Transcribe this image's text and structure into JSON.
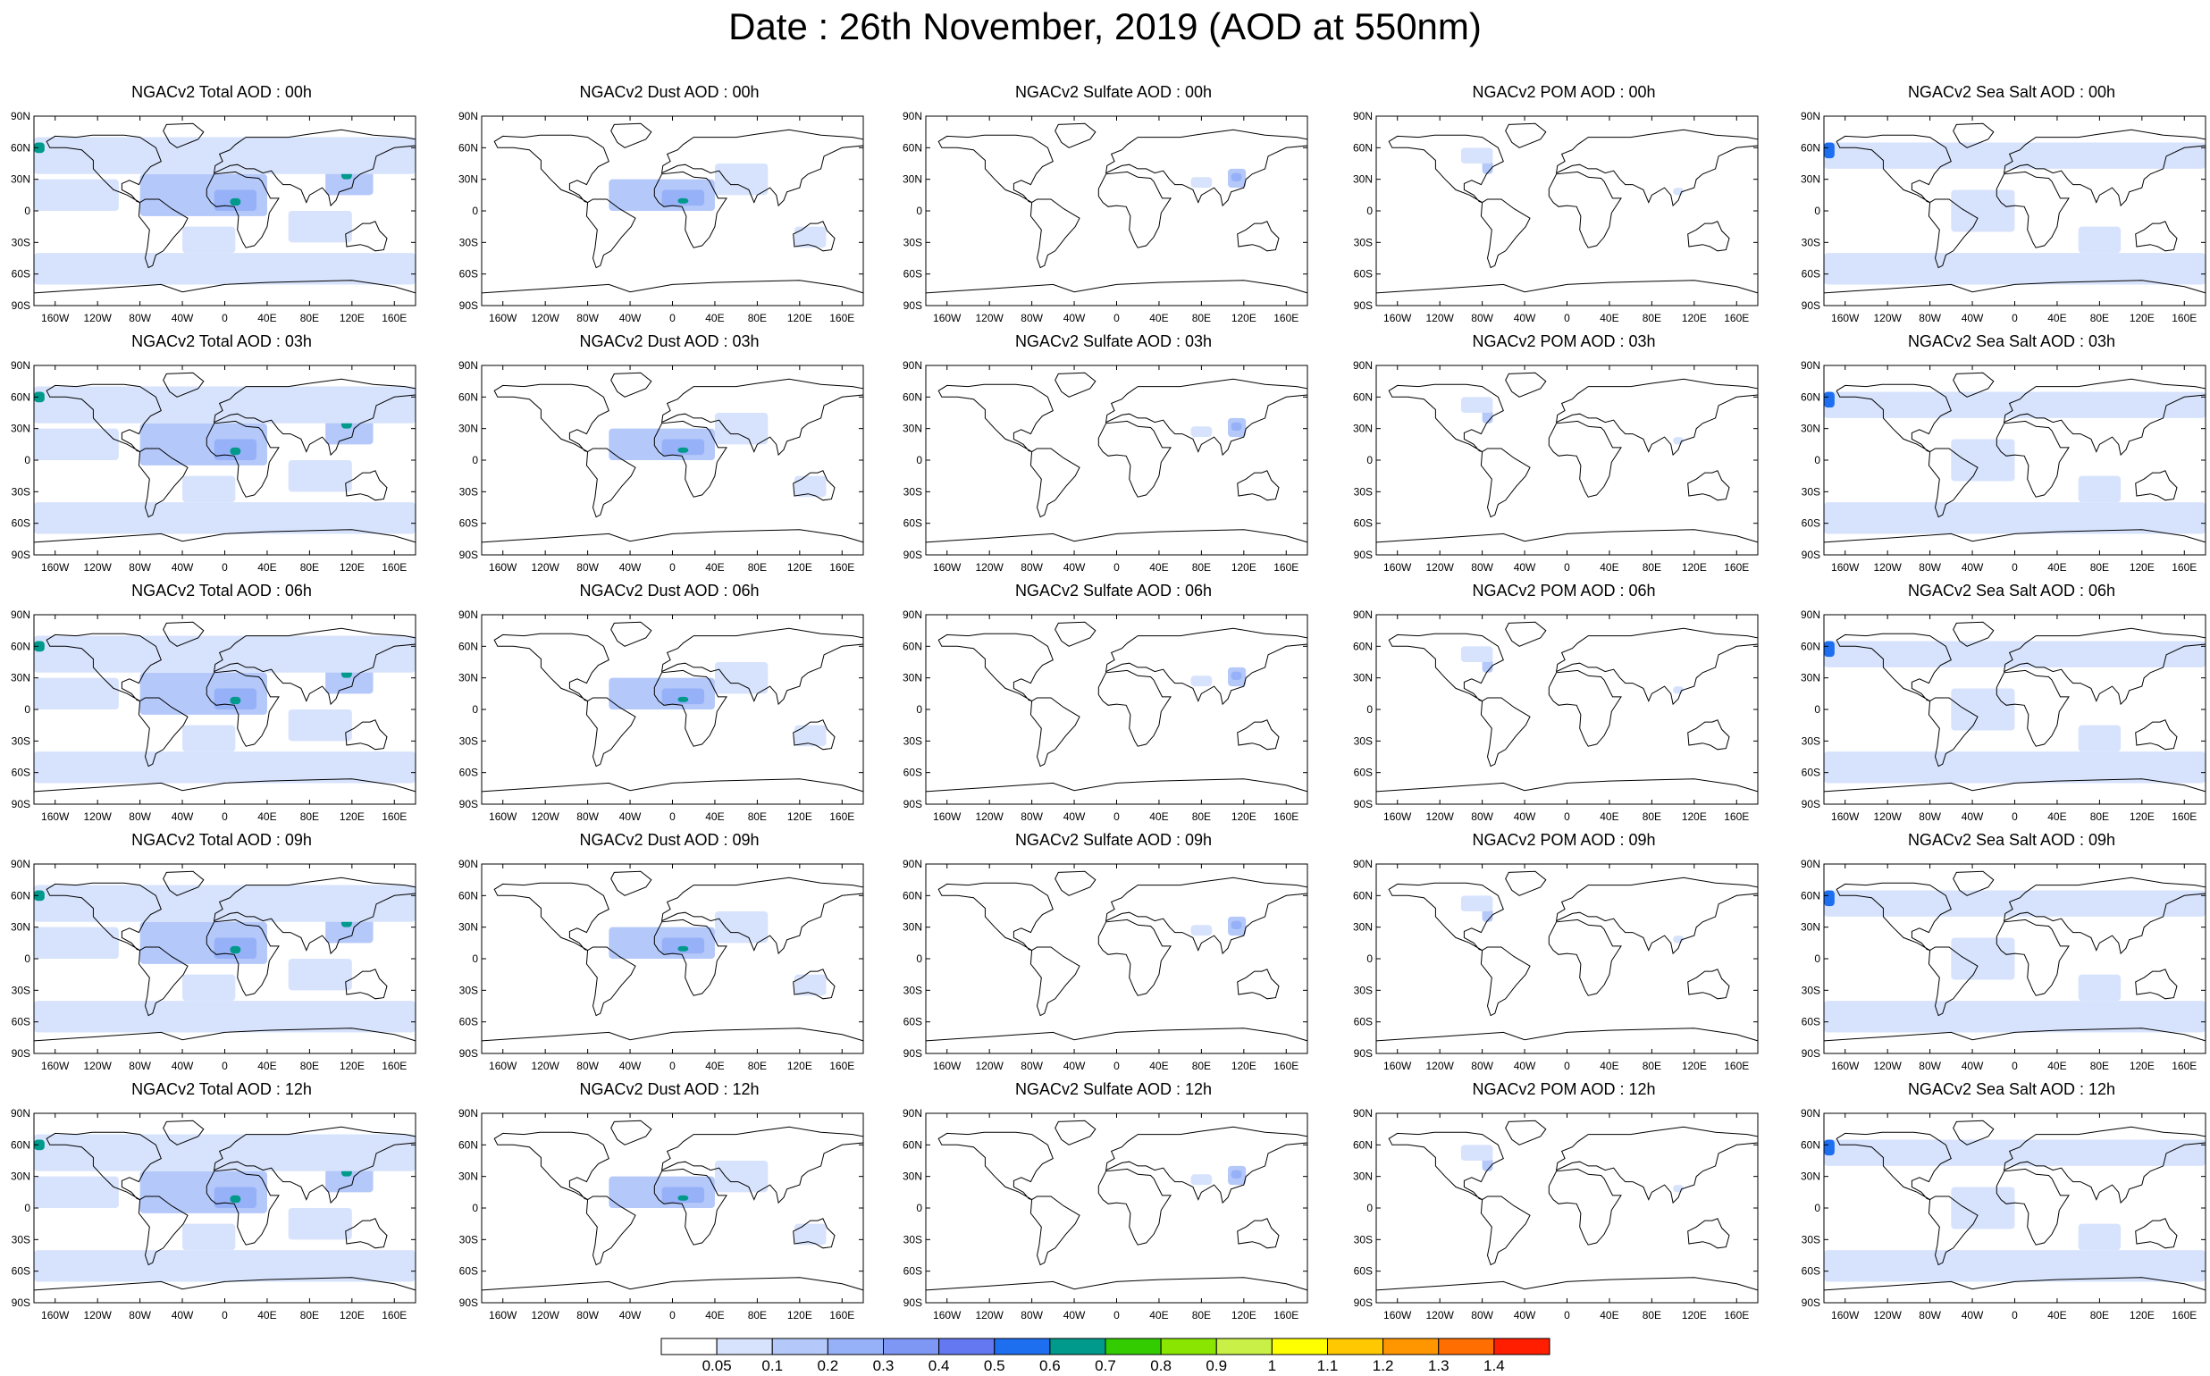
{
  "title": "Date : 26th November, 2019 (AOD at 550nm)",
  "species": [
    {
      "key": "total",
      "name": "Total"
    },
    {
      "key": "dust",
      "name": "Dust"
    },
    {
      "key": "sulfate",
      "name": "Sulfate"
    },
    {
      "key": "pom",
      "name": "POM"
    },
    {
      "key": "seasalt",
      "name": "Sea Salt"
    }
  ],
  "hours": [
    "00h",
    "03h",
    "06h",
    "09h",
    "12h"
  ],
  "panel_titles": [
    [
      "NGACv2 Total AOD : 00h",
      "NGACv2 Dust AOD : 00h",
      "NGACv2 Sulfate AOD : 00h",
      "NGACv2 POM AOD : 00h",
      "NGACv2 Sea Salt AOD : 00h"
    ],
    [
      "NGACv2 Total AOD : 03h",
      "NGACv2 Dust AOD : 03h",
      "NGACv2 Sulfate AOD : 03h",
      "NGACv2 POM AOD : 03h",
      "NGACv2 Sea Salt AOD : 03h"
    ],
    [
      "NGACv2 Total AOD : 06h",
      "NGACv2 Dust AOD : 06h",
      "NGACv2 Sulfate AOD : 06h",
      "NGACv2 POM AOD : 06h",
      "NGACv2 Sea Salt AOD : 06h"
    ],
    [
      "NGACv2 Total AOD : 09h",
      "NGACv2 Dust AOD : 09h",
      "NGACv2 Sulfate AOD : 09h",
      "NGACv2 POM AOD : 09h",
      "NGACv2 Sea Salt  AOD : 09h"
    ],
    [
      "NGACv2 Total AOD  : 12h",
      "NGACv2 Dust AOD : 12h",
      "NGACv2 Sulfate AOD : 12h",
      "NGACv2 POM  AOD : 12h",
      "NGACv2 Sea Salt  AOD : 12h"
    ]
  ],
  "map": {
    "lat_ticks": [
      "90N",
      "60N",
      "30N",
      "0",
      "30S",
      "60S",
      "90S"
    ],
    "lon_ticks": [
      "160W",
      "120W",
      "80W",
      "40W",
      "0",
      "40E",
      "80E",
      "120E",
      "160E"
    ],
    "lon_tick_values": [
      -160,
      -120,
      -80,
      -40,
      0,
      40,
      80,
      120,
      160
    ],
    "lat_tick_values": [
      90,
      60,
      30,
      0,
      -30,
      -60,
      -90
    ],
    "projection": "cylindrical-equidistant",
    "coastline_color": "#000000"
  },
  "colorbar": {
    "labels": [
      "0.05",
      "0.1",
      "0.2",
      "0.3",
      "0.4",
      "0.5",
      "0.6",
      "0.7",
      "0.8",
      "0.9",
      "1",
      "1.1",
      "1.2",
      "1.3",
      "1.4"
    ],
    "colors": [
      "#ffffff",
      "#d7e3fc",
      "#b4c8fa",
      "#96b1f8",
      "#7e96f4",
      "#6478f1",
      "#1e6ef0",
      "#009a8c",
      "#33cc00",
      "#8ae600",
      "#c8f046",
      "#ffff00",
      "#ffc800",
      "#ff9600",
      "#ff6e00",
      "#ff1e00"
    ]
  },
  "aod_regions": {
    "total": [
      {
        "lon": [
          -80,
          40
        ],
        "lat": [
          -5,
          35
        ],
        "level": 2
      },
      {
        "lon": [
          -10,
          30
        ],
        "lat": [
          0,
          20
        ],
        "level": 3
      },
      {
        "lon": [
          5,
          15
        ],
        "lat": [
          5,
          12
        ],
        "level": 7
      },
      {
        "lon": [
          95,
          140
        ],
        "lat": [
          15,
          45
        ],
        "level": 2
      },
      {
        "lon": [
          110,
          120
        ],
        "lat": [
          30,
          38
        ],
        "level": 7
      },
      {
        "lon": [
          -180,
          180
        ],
        "lat": [
          35,
          70
        ],
        "level": 1
      },
      {
        "lon": [
          -180,
          180
        ],
        "lat": [
          -70,
          -40
        ],
        "level": 1
      },
      {
        "lon": [
          -180,
          -170
        ],
        "lat": [
          55,
          65
        ],
        "level": 7
      },
      {
        "lon": [
          60,
          120
        ],
        "lat": [
          -30,
          0
        ],
        "level": 1
      },
      {
        "lon": [
          -180,
          -100
        ],
        "lat": [
          0,
          30
        ],
        "level": 1
      },
      {
        "lon": [
          -40,
          10
        ],
        "lat": [
          -40,
          -15
        ],
        "level": 1
      }
    ],
    "dust": [
      {
        "lon": [
          -60,
          40
        ],
        "lat": [
          0,
          30
        ],
        "level": 2
      },
      {
        "lon": [
          -10,
          30
        ],
        "lat": [
          5,
          20
        ],
        "level": 3
      },
      {
        "lon": [
          5,
          15
        ],
        "lat": [
          7,
          12
        ],
        "level": 7
      },
      {
        "lon": [
          40,
          90
        ],
        "lat": [
          15,
          45
        ],
        "level": 1
      },
      {
        "lon": [
          115,
          145
        ],
        "lat": [
          -35,
          -15
        ],
        "level": 1
      }
    ],
    "sulfate": [
      {
        "lon": [
          105,
          122
        ],
        "lat": [
          22,
          40
        ],
        "level": 2
      },
      {
        "lon": [
          108,
          118
        ],
        "lat": [
          28,
          36
        ],
        "level": 3
      },
      {
        "lon": [
          70,
          90
        ],
        "lat": [
          22,
          32
        ],
        "level": 1
      }
    ],
    "pom": [
      {
        "lon": [
          -80,
          -70
        ],
        "lat": [
          35,
          48
        ],
        "level": 2
      },
      {
        "lon": [
          -100,
          -70
        ],
        "lat": [
          45,
          60
        ],
        "level": 1
      },
      {
        "lon": [
          100,
          110
        ],
        "lat": [
          15,
          22
        ],
        "level": 1
      }
    ],
    "seasalt": [
      {
        "lon": [
          -180,
          180
        ],
        "lat": [
          -70,
          -40
        ],
        "level": 1
      },
      {
        "lon": [
          -180,
          180
        ],
        "lat": [
          40,
          65
        ],
        "level": 1
      },
      {
        "lon": [
          -60,
          0
        ],
        "lat": [
          -20,
          20
        ],
        "level": 1
      },
      {
        "lon": [
          60,
          100
        ],
        "lat": [
          -40,
          -15
        ],
        "level": 1
      },
      {
        "lon": [
          -180,
          -170
        ],
        "lat": [
          50,
          65
        ],
        "level": 6
      }
    ]
  }
}
